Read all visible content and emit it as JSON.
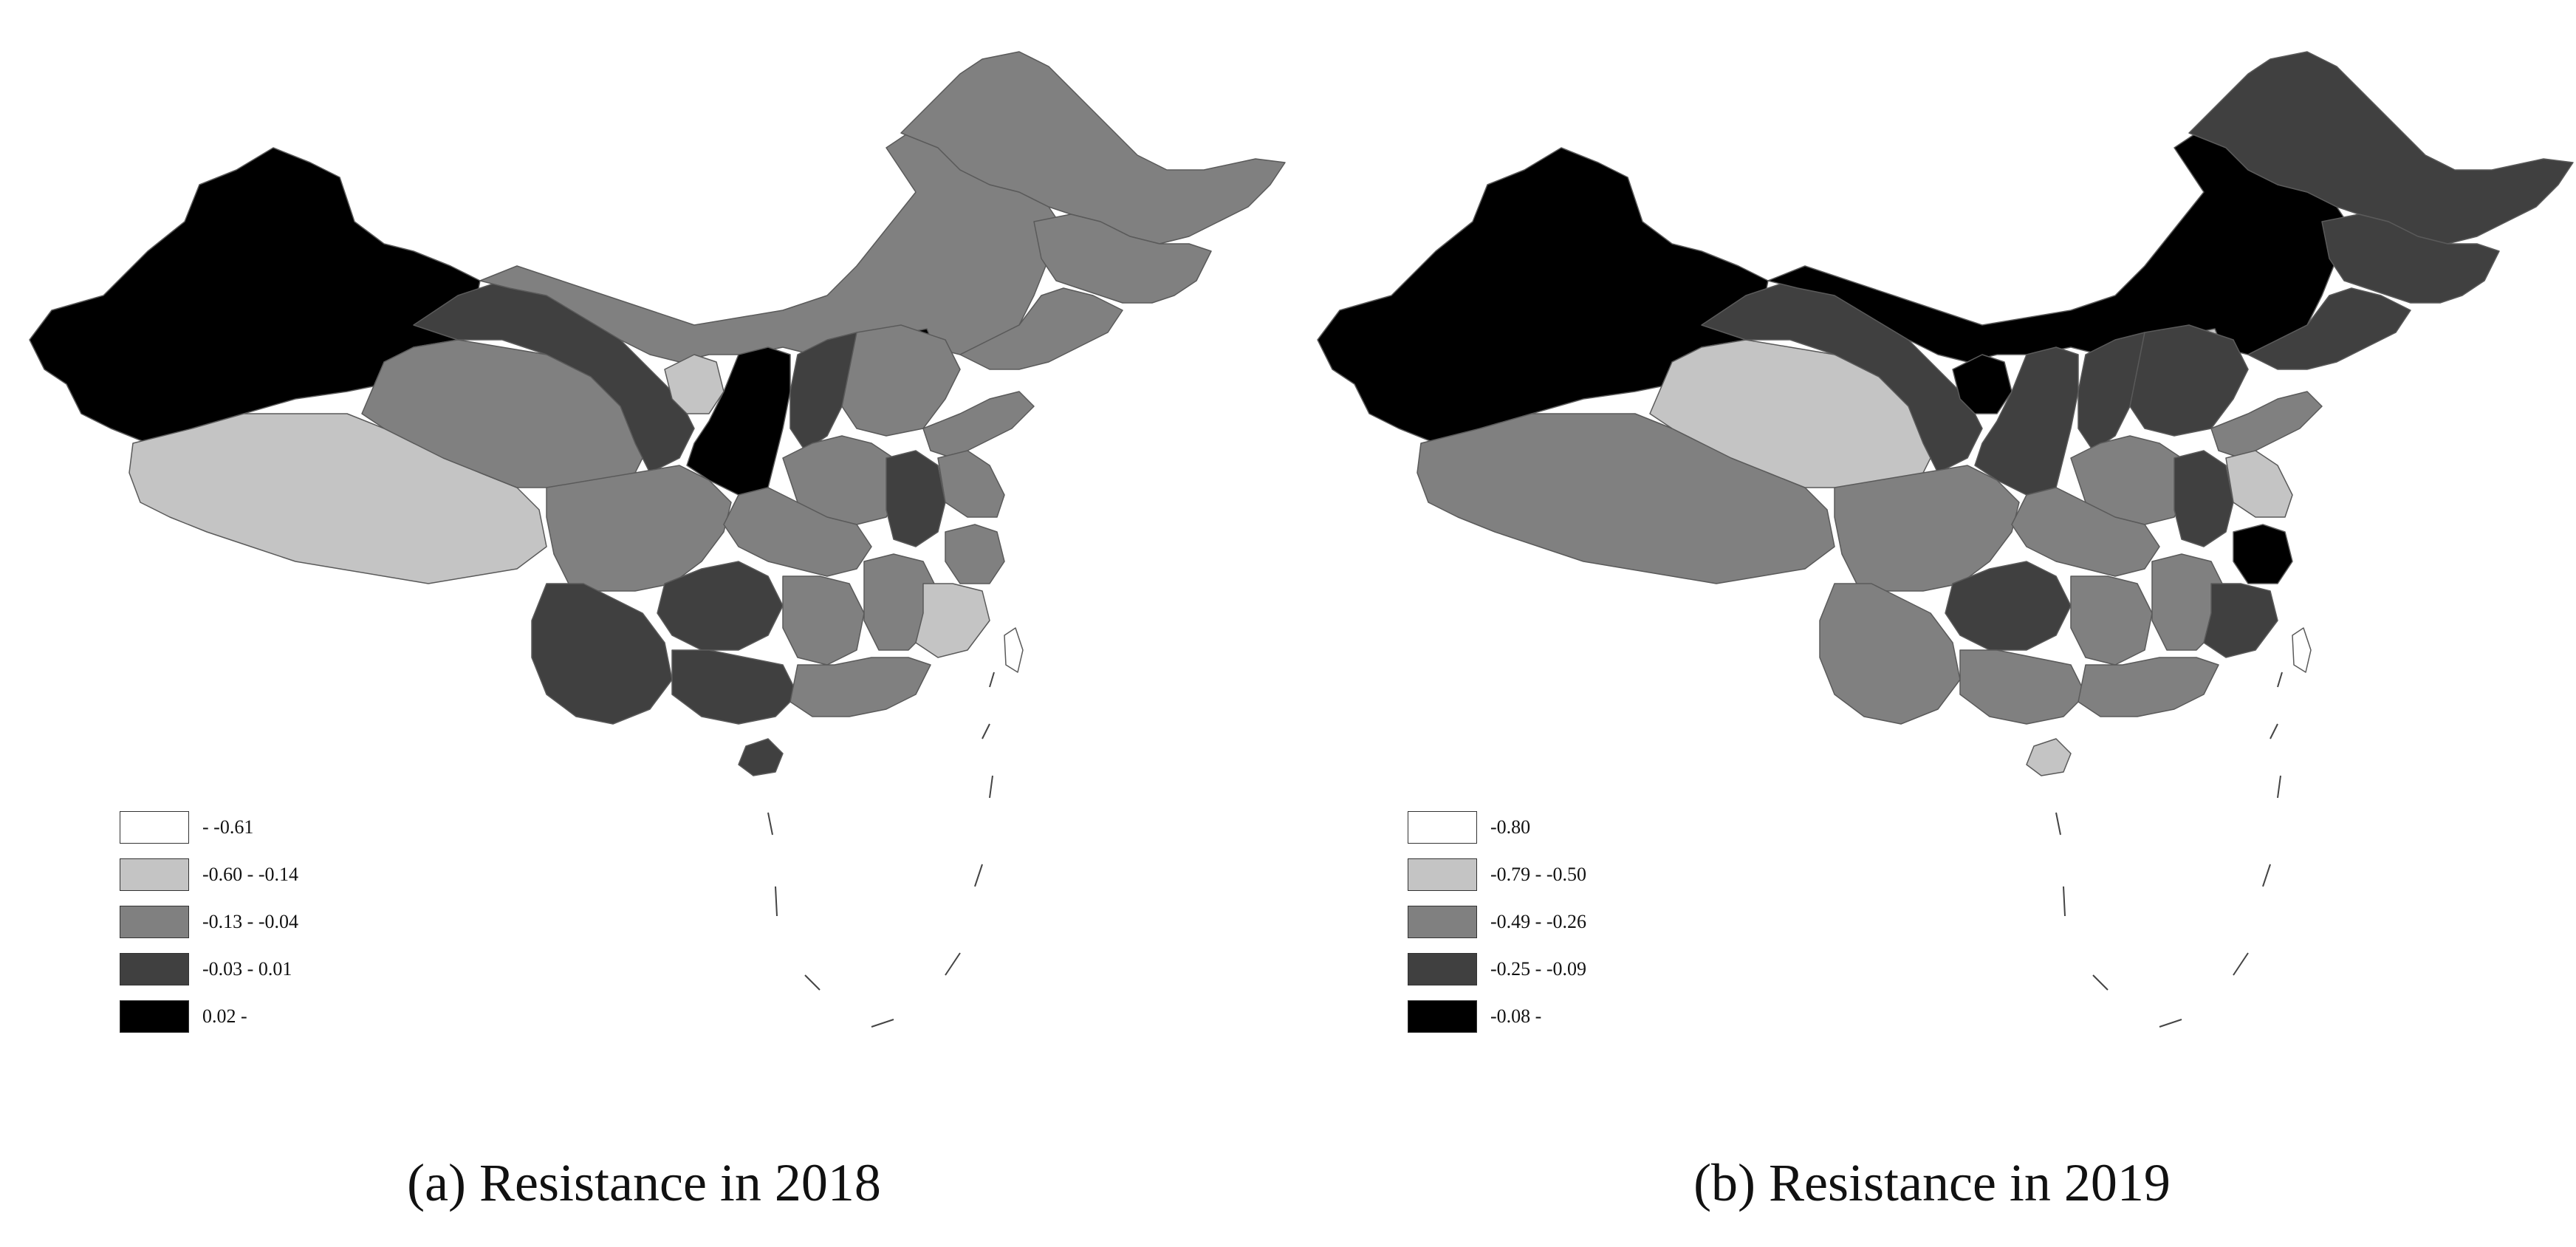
{
  "panels": [
    {
      "caption": "(a) Resistance in 2018",
      "legend": [
        {
          "label": "- -0.61",
          "color": "#ffffff"
        },
        {
          "label": "-0.60 - -0.14",
          "color": "#c4c4c4"
        },
        {
          "label": "-0.13 - -0.04",
          "color": "#808080"
        },
        {
          "label": "-0.03 - 0.01",
          "color": "#404040"
        },
        {
          "label": "0.02 -",
          "color": "#000000"
        }
      ]
    },
    {
      "caption": "(b) Resistance in 2019",
      "legend": [
        {
          "label": "-0.80",
          "color": "#ffffff"
        },
        {
          "label": "-0.79 - -0.50",
          "color": "#c4c4c4"
        },
        {
          "label": "-0.49 - -0.26",
          "color": "#808080"
        },
        {
          "label": "-0.25 - -0.09",
          "color": "#404040"
        },
        {
          "label": "-0.08 -",
          "color": "#000000"
        }
      ]
    }
  ],
  "classes": {
    "white": "#ffffff",
    "light": "#c4c4c4",
    "mid": "#808080",
    "dark": "#404040",
    "black": "#000000"
  }
}
